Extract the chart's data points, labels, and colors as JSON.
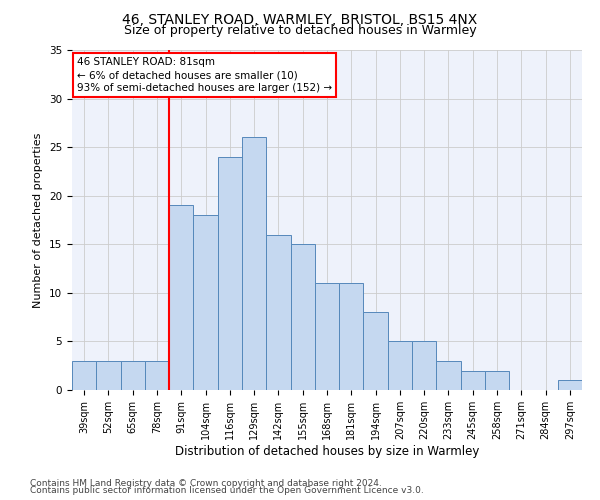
{
  "title1": "46, STANLEY ROAD, WARMLEY, BRISTOL, BS15 4NX",
  "title2": "Size of property relative to detached houses in Warmley",
  "xlabel": "Distribution of detached houses by size in Warmley",
  "ylabel": "Number of detached properties",
  "categories": [
    "39sqm",
    "52sqm",
    "65sqm",
    "78sqm",
    "91sqm",
    "104sqm",
    "116sqm",
    "129sqm",
    "142sqm",
    "155sqm",
    "168sqm",
    "181sqm",
    "194sqm",
    "207sqm",
    "220sqm",
    "233sqm",
    "245sqm",
    "258sqm",
    "271sqm",
    "284sqm",
    "297sqm"
  ],
  "values": [
    3,
    3,
    3,
    3,
    19,
    18,
    24,
    26,
    16,
    15,
    11,
    11,
    8,
    5,
    5,
    3,
    2,
    2,
    0,
    0,
    1
  ],
  "bar_color": "#c5d8f0",
  "bar_edge_color": "#5588bb",
  "annotation_line1": "46 STANLEY ROAD: 81sqm",
  "annotation_line2": "← 6% of detached houses are smaller (10)",
  "annotation_line3": "93% of semi-detached houses are larger (152) →",
  "annotation_box_color": "white",
  "annotation_box_edge_color": "red",
  "vline_color": "red",
  "ylim": [
    0,
    35
  ],
  "yticks": [
    0,
    5,
    10,
    15,
    20,
    25,
    30,
    35
  ],
  "grid_color": "#cccccc",
  "bg_color": "#eef2fb",
  "footnote1": "Contains HM Land Registry data © Crown copyright and database right 2024.",
  "footnote2": "Contains public sector information licensed under the Open Government Licence v3.0.",
  "title1_fontsize": 10,
  "title2_fontsize": 9,
  "xlabel_fontsize": 8.5,
  "ylabel_fontsize": 8,
  "tick_fontsize": 7,
  "annotation_fontsize": 7.5,
  "footnote_fontsize": 6.5
}
